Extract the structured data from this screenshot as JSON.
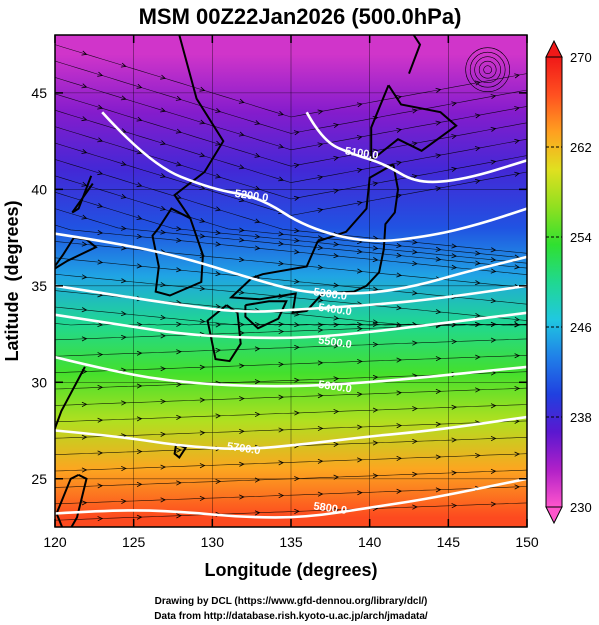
{
  "chart_data": {
    "type": "heatmap",
    "title": "MSM 00Z22Jan2026 (500.0hPa)",
    "xlabel": "Longitude (degrees)",
    "ylabel": "Latitude  (degrees)",
    "xlim": [
      120,
      150
    ],
    "ylim": [
      22.5,
      48
    ],
    "xticks": [
      120,
      125,
      130,
      135,
      140,
      145,
      150
    ],
    "yticks": [
      25,
      30,
      35,
      40,
      45
    ],
    "color_field": "temperature",
    "colorbar": {
      "min": 230,
      "max": 270,
      "ticks": [
        230,
        238,
        246,
        254,
        262,
        270
      ],
      "colors": [
        "#ff55cc",
        "#b020c8",
        "#5a18d0",
        "#2040e0",
        "#2080e8",
        "#20c8e0",
        "#20d890",
        "#30e030",
        "#90e020",
        "#e0e020",
        "#ffa020",
        "#ff5020",
        "#f01818"
      ]
    },
    "temperature_bands": [
      {
        "lat": 47,
        "value": 232
      },
      {
        "lat": 44,
        "value": 235
      },
      {
        "lat": 41,
        "value": 238
      },
      {
        "lat": 38,
        "value": 241
      },
      {
        "lat": 35.5,
        "value": 245
      },
      {
        "lat": 33,
        "value": 250
      },
      {
        "lat": 30.5,
        "value": 254
      },
      {
        "lat": 28,
        "value": 258
      },
      {
        "lat": 25.5,
        "value": 263
      },
      {
        "lat": 23,
        "value": 267
      }
    ],
    "contours": [
      {
        "label": "5100.0",
        "points": [
          [
            136,
            44
          ],
          [
            137,
            42.5
          ],
          [
            139,
            41.8
          ],
          [
            141,
            41.3
          ],
          [
            143,
            40.3
          ],
          [
            146,
            40.5
          ],
          [
            150,
            41.5
          ]
        ]
      },
      {
        "label": "5200.0",
        "points": [
          [
            123,
            44
          ],
          [
            126,
            41.3
          ],
          [
            130,
            40
          ],
          [
            133,
            39.6
          ],
          [
            136,
            38
          ],
          [
            140,
            37.2
          ],
          [
            144,
            37.6
          ],
          [
            147,
            38.2
          ],
          [
            150,
            39
          ]
        ]
      },
      {
        "label": "5300.0",
        "points": [
          [
            120,
            37.7
          ],
          [
            124,
            37.2
          ],
          [
            128,
            36.5
          ],
          [
            132,
            35.5
          ],
          [
            135,
            34.8
          ],
          [
            137,
            34.6
          ],
          [
            140,
            34.6
          ],
          [
            143,
            35
          ],
          [
            146,
            35.7
          ],
          [
            150,
            36.5
          ]
        ]
      },
      {
        "label": "5400.0",
        "points": [
          [
            120,
            35
          ],
          [
            124,
            34.5
          ],
          [
            128,
            34
          ],
          [
            132,
            33.6
          ],
          [
            136,
            33.8
          ],
          [
            140,
            34
          ],
          [
            144,
            34.3
          ],
          [
            150,
            35
          ]
        ]
      },
      {
        "label": "5500.0",
        "points": [
          [
            120,
            33.5
          ],
          [
            124,
            33
          ],
          [
            128,
            32.5
          ],
          [
            132,
            32.3
          ],
          [
            136,
            32.3
          ],
          [
            140,
            32.6
          ],
          [
            144,
            33
          ],
          [
            150,
            33.6
          ]
        ]
      },
      {
        "label": "5600.0",
        "points": [
          [
            120,
            31.3
          ],
          [
            124,
            30.5
          ],
          [
            128,
            30
          ],
          [
            132,
            29.8
          ],
          [
            136,
            29.8
          ],
          [
            140,
            30
          ],
          [
            144,
            30.3
          ],
          [
            150,
            30.8
          ]
        ]
      },
      {
        "label": "5700.0",
        "points": [
          [
            120,
            27.5
          ],
          [
            124,
            27.2
          ],
          [
            128,
            26.7
          ],
          [
            132,
            26.5
          ],
          [
            136,
            26.8
          ],
          [
            140,
            27.2
          ],
          [
            144,
            27.5
          ],
          [
            150,
            28.2
          ]
        ]
      },
      {
        "label": "5800.0",
        "points": [
          [
            120,
            23.2
          ],
          [
            124,
            23.4
          ],
          [
            128,
            23.3
          ],
          [
            132,
            23
          ],
          [
            136,
            23
          ],
          [
            140,
            23.5
          ],
          [
            144,
            24
          ],
          [
            150,
            25
          ]
        ]
      }
    ],
    "visible_contour_labels": [
      {
        "label": "5100.0",
        "lon": 139.5,
        "lat": 41.9
      },
      {
        "label": "5200.0",
        "lon": 132.5,
        "lat": 39.7
      },
      {
        "label": "5300.0",
        "lon": 137.5,
        "lat": 34.6
      },
      {
        "label": "5400.0",
        "lon": 137.8,
        "lat": 33.8
      },
      {
        "label": "5500.0",
        "lon": 137.8,
        "lat": 32.1
      },
      {
        "label": "5600.0",
        "lon": 137.8,
        "lat": 29.8
      },
      {
        "label": "5700.0",
        "lon": 132,
        "lat": 26.6
      },
      {
        "label": "5800.0",
        "lon": 137.5,
        "lat": 23.5
      }
    ]
  },
  "credits": {
    "line1": "Drawing by DCL (https://www.gfd-dennou.org/library/dcl/)",
    "line2": "Data from http://database.rish.kyoto-u.ac.jp/arch/jmadata/"
  },
  "colors": {
    "background": "#ffffff",
    "contour": "#ffffff",
    "streamline": "#000000",
    "coast": "#000000"
  }
}
